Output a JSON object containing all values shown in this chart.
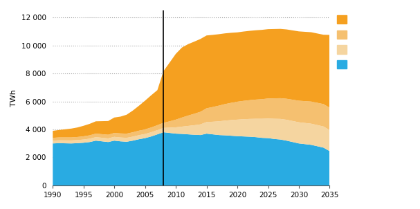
{
  "title": "",
  "ylabel": "TWh",
  "xlabel": "",
  "colors": [
    "#29ABE2",
    "#F5D5A0",
    "#F5C070",
    "#F5A020"
  ],
  "legend_colors": [
    "#F5A020",
    "#F5C070",
    "#F5D5A0",
    "#29ABE2"
  ],
  "ylim": [
    0,
    12500
  ],
  "yticks": [
    0,
    2000,
    4000,
    6000,
    8000,
    10000,
    12000
  ],
  "ytick_labels": [
    "0",
    "2 000",
    "4 000",
    "6 000",
    "8 000",
    "10 000",
    "12 000"
  ],
  "vline_x": 2008,
  "years": [
    1990,
    1991,
    1992,
    1993,
    1994,
    1995,
    1996,
    1997,
    1998,
    1999,
    2000,
    2001,
    2002,
    2003,
    2004,
    2005,
    2006,
    2007,
    2008,
    2009,
    2010,
    2011,
    2012,
    2013,
    2014,
    2015,
    2016,
    2017,
    2018,
    2019,
    2020,
    2021,
    2022,
    2023,
    2024,
    2025,
    2026,
    2027,
    2028,
    2029,
    2030,
    2031,
    2032,
    2033,
    2034,
    2035
  ],
  "blue": [
    3000,
    3020,
    3010,
    3000,
    3020,
    3050,
    3100,
    3200,
    3150,
    3100,
    3200,
    3150,
    3120,
    3200,
    3300,
    3380,
    3500,
    3650,
    3800,
    3750,
    3700,
    3680,
    3650,
    3620,
    3600,
    3700,
    3650,
    3600,
    3580,
    3550,
    3520,
    3500,
    3480,
    3450,
    3400,
    3380,
    3320,
    3280,
    3200,
    3100,
    3000,
    2950,
    2900,
    2800,
    2700,
    2450
  ],
  "peach_light": [
    200,
    205,
    210,
    215,
    220,
    230,
    240,
    250,
    255,
    260,
    270,
    275,
    280,
    285,
    290,
    295,
    300,
    305,
    310,
    380,
    450,
    520,
    600,
    680,
    760,
    830,
    900,
    980,
    1050,
    1120,
    1180,
    1230,
    1270,
    1310,
    1360,
    1400,
    1440,
    1470,
    1490,
    1500,
    1510,
    1510,
    1510,
    1510,
    1510,
    1500
  ],
  "peach_mid": [
    200,
    205,
    210,
    215,
    220,
    230,
    240,
    250,
    255,
    260,
    280,
    290,
    300,
    310,
    320,
    330,
    340,
    350,
    360,
    450,
    550,
    650,
    740,
    820,
    900,
    980,
    1050,
    1120,
    1180,
    1230,
    1280,
    1310,
    1340,
    1370,
    1400,
    1430,
    1460,
    1480,
    1500,
    1520,
    1540,
    1560,
    1580,
    1590,
    1600,
    1600
  ],
  "orange": [
    500,
    530,
    580,
    630,
    680,
    750,
    820,
    880,
    930,
    980,
    1100,
    1200,
    1350,
    1550,
    1780,
    2050,
    2300,
    2500,
    3700,
    4200,
    4700,
    5000,
    5100,
    5150,
    5200,
    5200,
    5150,
    5100,
    5050,
    5000,
    4950,
    4950,
    4950,
    4950,
    4950,
    4950,
    4950,
    4950,
    4950,
    4950,
    4950,
    4950,
    4950,
    4950,
    4950,
    5200
  ],
  "xticks": [
    1990,
    1995,
    2000,
    2005,
    2010,
    2015,
    2020,
    2025,
    2030,
    2035
  ],
  "xlim": [
    1990,
    2035
  ]
}
